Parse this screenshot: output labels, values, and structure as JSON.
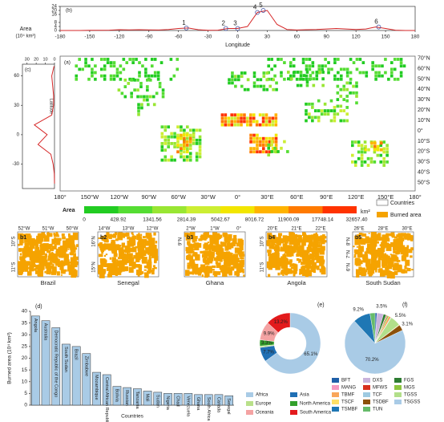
{
  "chart_data": [
    {
      "type": "line",
      "panel_label": "(b)",
      "y_label_1": "Area",
      "y_label_2": "(10⁴ km²)",
      "x_label": "Longitude",
      "color": "#d62728",
      "x": [
        -180,
        -170,
        -160,
        -150,
        -140,
        -130,
        -120,
        -110,
        -100,
        -90,
        -80,
        -70,
        -60,
        -50,
        -40,
        -30,
        -20,
        -10,
        0,
        10,
        20,
        30,
        40,
        50,
        60,
        70,
        80,
        90,
        100,
        110,
        120,
        130,
        140,
        150,
        160,
        170,
        180
      ],
      "values": [
        0,
        0,
        0,
        0.2,
        0.2,
        0.3,
        0.8,
        0.6,
        0.8,
        0.6,
        0.5,
        1,
        2,
        2.5,
        0.8,
        0.2,
        0.3,
        2,
        2,
        4,
        18,
        20,
        6,
        1,
        0.5,
        0.8,
        1,
        1.5,
        2,
        1.5,
        1,
        1.5,
        3.5,
        2,
        0.3,
        0,
        0
      ],
      "xlim": [
        -180,
        180
      ],
      "xticks": [
        -180,
        -150,
        -120,
        -90,
        -60,
        -30,
        0,
        30,
        60,
        90,
        120,
        150,
        180
      ],
      "ylim": [
        0,
        24
      ],
      "yticks": [
        0,
        4,
        8,
        16,
        20,
        24
      ],
      "annotations": [
        {
          "text": "1",
          "x": -52,
          "y": 2.5
        },
        {
          "text": "2",
          "x": -12,
          "y": 2
        },
        {
          "text": "3",
          "x": 0,
          "y": 2
        },
        {
          "text": "4",
          "x": 20,
          "y": 18
        },
        {
          "text": "5",
          "x": 26,
          "y": 20
        },
        {
          "text": "6",
          "x": 143,
          "y": 3.5
        }
      ]
    },
    {
      "type": "line",
      "orientation": "vertical",
      "panel_label": "(c)",
      "y_label": "Latitude",
      "color": "#d62728",
      "y": [
        -50,
        -40,
        -30,
        -20,
        -10,
        0,
        10,
        20,
        30,
        40,
        50,
        60,
        70
      ],
      "values": [
        0,
        0.2,
        1.5,
        4,
        18,
        8,
        22,
        3,
        1,
        1,
        2,
        3,
        0.5
      ],
      "xlim": [
        35,
        0
      ],
      "xticks": [
        30,
        20,
        10,
        0
      ],
      "ylim": [
        -55,
        72
      ],
      "yticks": [
        60,
        30,
        0,
        -30
      ]
    },
    {
      "type": "bar",
      "panel_label": "(d)",
      "y_label": "Burned area (10⁴ km²)",
      "x_label": "Countries",
      "color": "#a9cbe6",
      "categories": [
        "Angola",
        "Australia",
        "Democratic Republic of the Congo",
        "South Sudan",
        "Brazil",
        "Zimbabwe",
        "Mozambique",
        "Central African Republic",
        "Bolivia",
        "Russian",
        "Tanzania",
        "Mali",
        "Sudan",
        "Nigeria",
        "Chad",
        "Venezuela",
        "Ghana",
        "South Africa",
        "Canada",
        "Senegal"
      ],
      "values": [
        38,
        36,
        33,
        26,
        25,
        22,
        14,
        13,
        8,
        7.5,
        7,
        6,
        5.5,
        5,
        5,
        5,
        4.5,
        4.5,
        4.5,
        4
      ],
      "ylim": [
        0,
        40
      ],
      "yticks": [
        0,
        5,
        10,
        15,
        20,
        25,
        30,
        35,
        40
      ]
    },
    {
      "type": "donut",
      "panel_label": "(e)",
      "categories": [
        "Africa",
        "Asia",
        "Europe",
        "North America",
        "Oceania",
        "South America"
      ],
      "values": [
        65.1,
        7.7,
        0.8,
        3.3,
        9.9,
        13.2
      ],
      "value_labels": [
        "65.1%",
        "7.7%",
        null,
        "3.3%",
        "9.9%",
        "13.2%"
      ],
      "colors": [
        "#a9cbe6",
        "#1f6fb4",
        "#b9e08a",
        "#33a02c",
        "#f4a3a3",
        "#e31a1c"
      ]
    },
    {
      "type": "pie",
      "panel_label": "(f)",
      "categories": [
        "BFT",
        "DXS",
        "FGS",
        "MANG",
        "MFWS",
        "MGS",
        "TBMF",
        "TCF",
        "TGSS",
        "TSCF",
        "TSDBF",
        "TSGSS",
        "TSMBF",
        "TUN"
      ],
      "values": [
        1,
        3.5,
        1.5,
        0.2,
        0.5,
        0.8,
        1.2,
        0.3,
        5.5,
        0.3,
        3.1,
        70.2,
        9.2,
        2.7
      ],
      "value_labels": [
        null,
        "3.5%",
        null,
        null,
        null,
        null,
        null,
        null,
        "5.5%",
        null,
        "3.1%",
        "70.2%",
        "9.2%",
        null
      ],
      "colors": [
        "#1f5fa8",
        "#c9b3dc",
        "#2e7d32",
        "#f49ac1",
        "#d7301f",
        "#8dc63f",
        "#f9a65a",
        "#9ecae1",
        "#b2df8a",
        "#ffe066",
        "#8c510a",
        "#a9cbe6",
        "#1f77b4",
        "#66bb6a"
      ]
    }
  ],
  "map": {
    "panel_label": "(a)",
    "lat_labels": [
      "70°N",
      "60°N",
      "50°N",
      "40°N",
      "30°N",
      "20°N",
      "10°N",
      "0°",
      "10°S",
      "20°S",
      "30°S",
      "40°S",
      "50°S"
    ],
    "lon_labels": [
      "180°",
      "150°W",
      "120°W",
      "90°W",
      "60°W",
      "30°W",
      "0°",
      "30°E",
      "60°E",
      "90°E",
      "120°E",
      "150°E",
      "180°"
    ],
    "legend_title": "Area",
    "legend_unit": "km²",
    "countries_label": "Countries",
    "burned_label": "Burned area",
    "legend_ticks": [
      0,
      428.92,
      1341.56,
      2814.39,
      5042.67,
      8016.72,
      11900.09,
      17748.14,
      {
        "value": 32657.4,
        "label": "32657.40"
      }
    ],
    "legend_colors": [
      "#22cc22",
      "#55dd33",
      "#99e633",
      "#ccee33",
      "#f2e600",
      "#ffb300",
      "#ff7a00",
      "#ff3300"
    ]
  },
  "insets": [
    {
      "label": "b1",
      "country": "Brazil",
      "xlabels": [
        "52°W",
        "51°W",
        "50°W"
      ],
      "ylabels": [
        "10°S",
        "11°S"
      ]
    },
    {
      "label": "b2",
      "country": "Senegal",
      "xlabels": [
        "14°W",
        "13°W",
        "12°W"
      ],
      "ylabels": [
        "16°N",
        "15°N"
      ]
    },
    {
      "label": "b3",
      "country": "Ghana",
      "xlabels": [
        "2°W",
        "1°W",
        "0°"
      ],
      "ylabels": [
        "9°N"
      ]
    },
    {
      "label": "b4",
      "country": "Angola",
      "xlabels": [
        "20°E",
        "21°E",
        "22°E"
      ],
      "ylabels": [
        "10°S",
        "11°S"
      ]
    },
    {
      "label": "b5",
      "country": "South Sudan",
      "xlabels": [
        "26°E",
        "28°E",
        "30°E"
      ],
      "ylabels": [
        "8°N",
        "7°N",
        "6°N"
      ]
    }
  ]
}
